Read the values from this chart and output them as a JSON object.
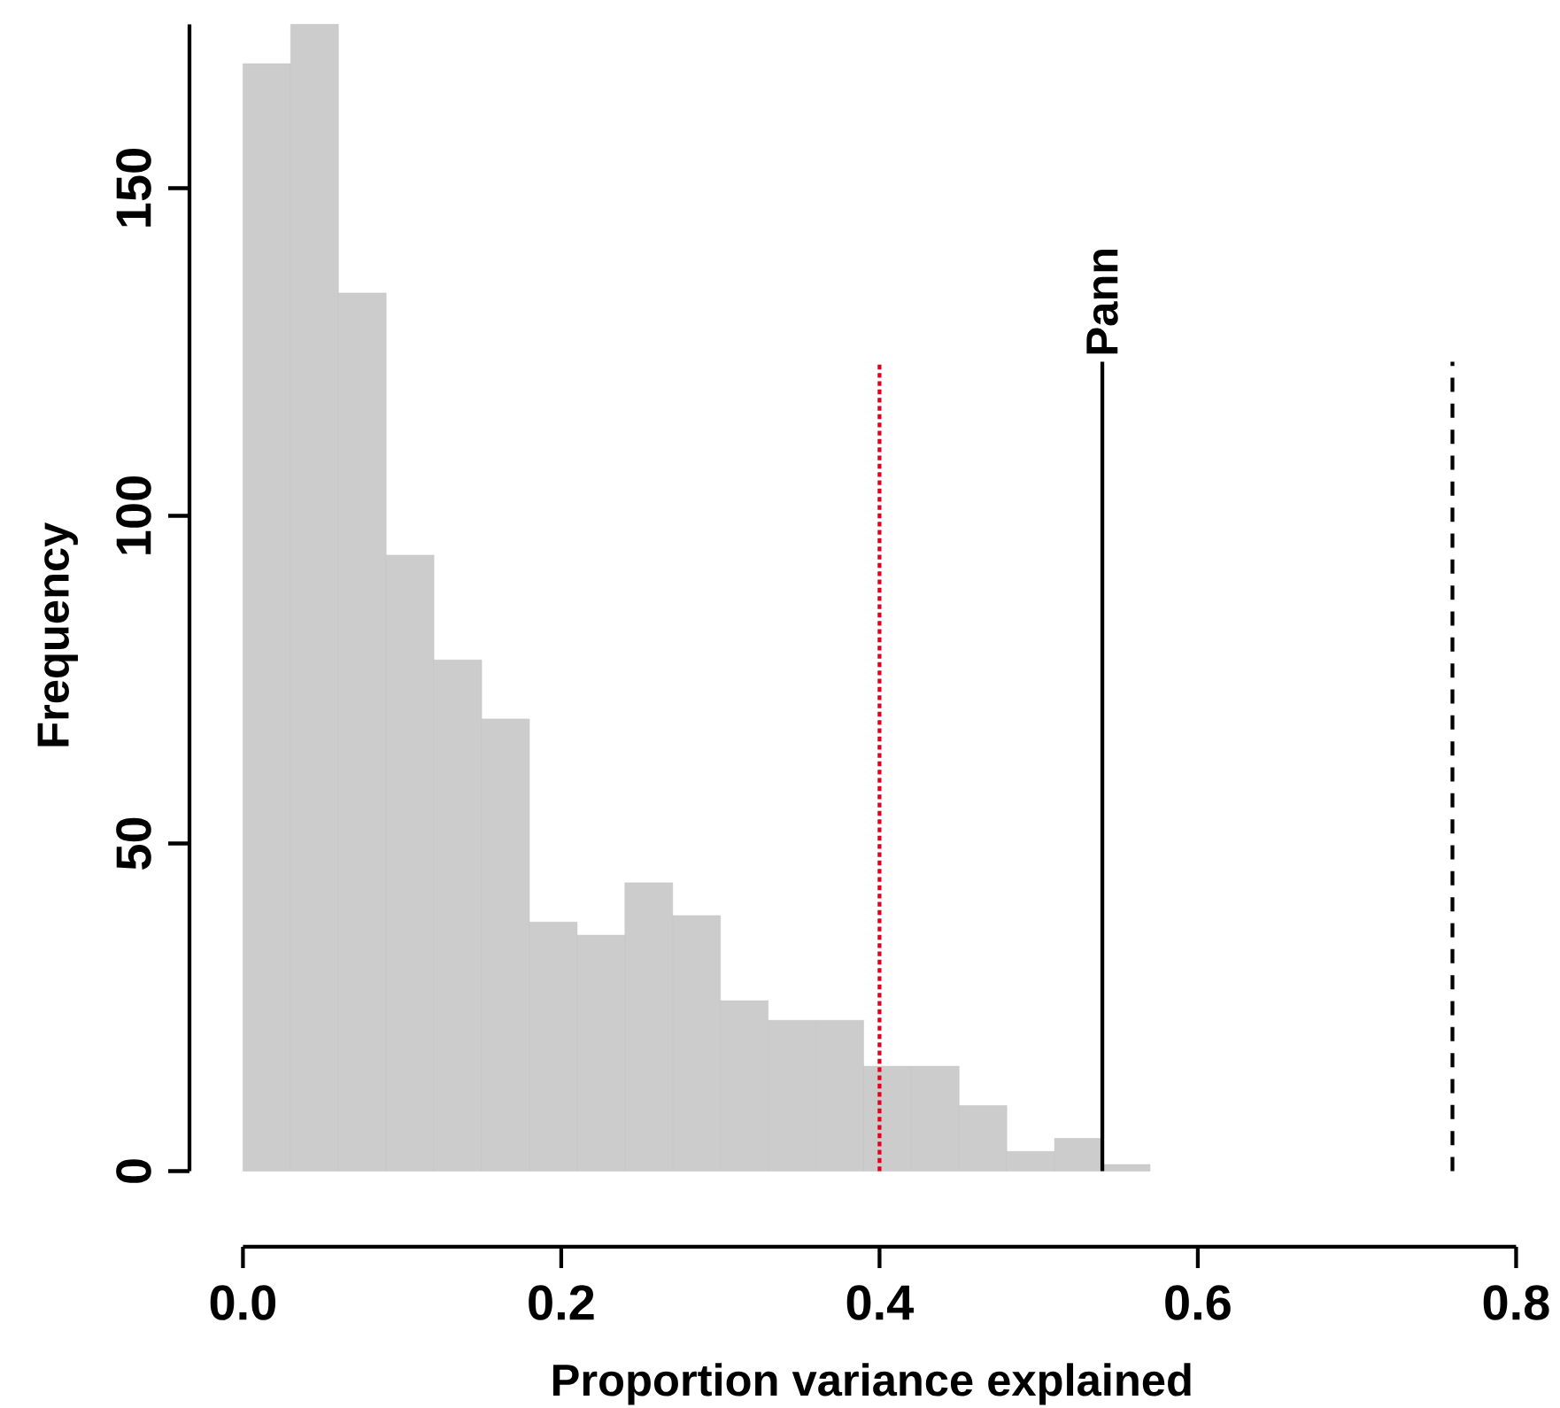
{
  "chart_data": {
    "type": "histogram",
    "xlabel": "Proportion variance explained",
    "ylabel": "Frequency",
    "bins": [
      0,
      0.03,
      0.06,
      0.09,
      0.12,
      0.15,
      0.18,
      0.21,
      0.24,
      0.27,
      0.3,
      0.33,
      0.36,
      0.39,
      0.42,
      0.45,
      0.48,
      0.51,
      0.54,
      0.57
    ],
    "values": [
      169,
      175,
      134,
      94,
      78,
      69,
      38,
      36,
      44,
      39,
      26,
      23,
      23,
      16,
      16,
      10,
      3,
      5,
      1
    ],
    "color": "#cccccc",
    "xlim": [
      0,
      0.8
    ],
    "xticks": [
      {
        "value": 0,
        "label": "0.0"
      },
      0.2,
      0.4,
      0.6,
      0.8
    ],
    "ylim": [
      0,
      175
    ],
    "yticks": [
      0,
      50,
      100,
      150
    ],
    "grid": false,
    "ref_lines": [
      {
        "axis": "x",
        "value": 0.4,
        "color": "#e3001b",
        "line_style": "dotted"
      },
      {
        "axis": "x",
        "value": 0.54,
        "label": "Pann",
        "color": "#000000",
        "line_style": "solid"
      },
      {
        "axis": "x",
        "value": 0.76,
        "color": "#000000",
        "line_style": "dashed"
      }
    ]
  }
}
